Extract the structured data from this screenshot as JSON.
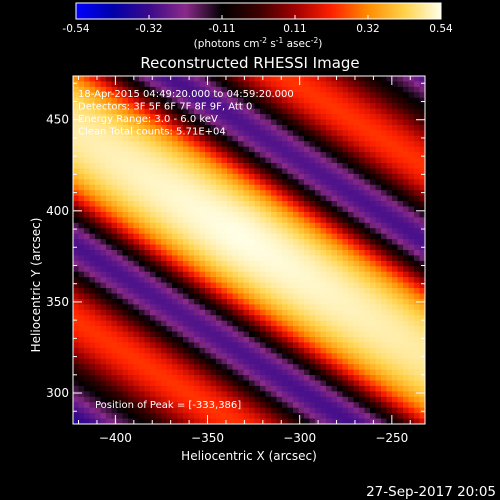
{
  "chart_data": {
    "type": "heatmap",
    "title": "Reconstructed RHESSI Image",
    "xlabel": "Heliocentric X (arcsec)",
    "ylabel": "Heliocentric Y (arcsec)",
    "xlim": [
      -423,
      -232
    ],
    "ylim": [
      283,
      474
    ],
    "x_ticks": [
      -400,
      -350,
      -300,
      -250
    ],
    "y_ticks": [
      300,
      350,
      400,
      450
    ],
    "colorbar": {
      "min": -0.54,
      "max": 0.54,
      "ticks": [
        "-0.54",
        "-0.32",
        "-0.11",
        "0.11",
        "0.32",
        "0.54"
      ],
      "units_base": "(photons cm",
      "units_exp1": "-2",
      "units_mid1": " s",
      "units_exp2": "-1",
      "units_mid2": " asec",
      "units_exp3": "-2",
      "units_end": ")",
      "colors": [
        "#0000ff",
        "#0000aa",
        "#3a0a8a",
        "#8a2a8a",
        "#000000",
        "#3a0000",
        "#a00000",
        "#ff2000",
        "#ff8c00",
        "#ffd24a",
        "#ffffe8"
      ]
    },
    "info_lines": [
      "18-Apr-2015 04:49:20.000 to 04:59:20.000",
      "Detectors: 3F 5F 6F 7F 8F 9F, Att 0",
      "Energy Range: 3.0 - 6.0 keV",
      "Clean     Total counts: 5.71E+04"
    ],
    "peak_label": "Position of Peak = [-333,386]",
    "peak": [
      -333,
      386
    ],
    "ridge": {
      "angle_deg": 33,
      "period_arcsec": 93,
      "center_width_arcsec": 40,
      "sidelobe_level": -0.25,
      "negative_lobe": -0.54
    }
  },
  "footer": {
    "timestamp": "27-Sep-2017 20:05"
  }
}
